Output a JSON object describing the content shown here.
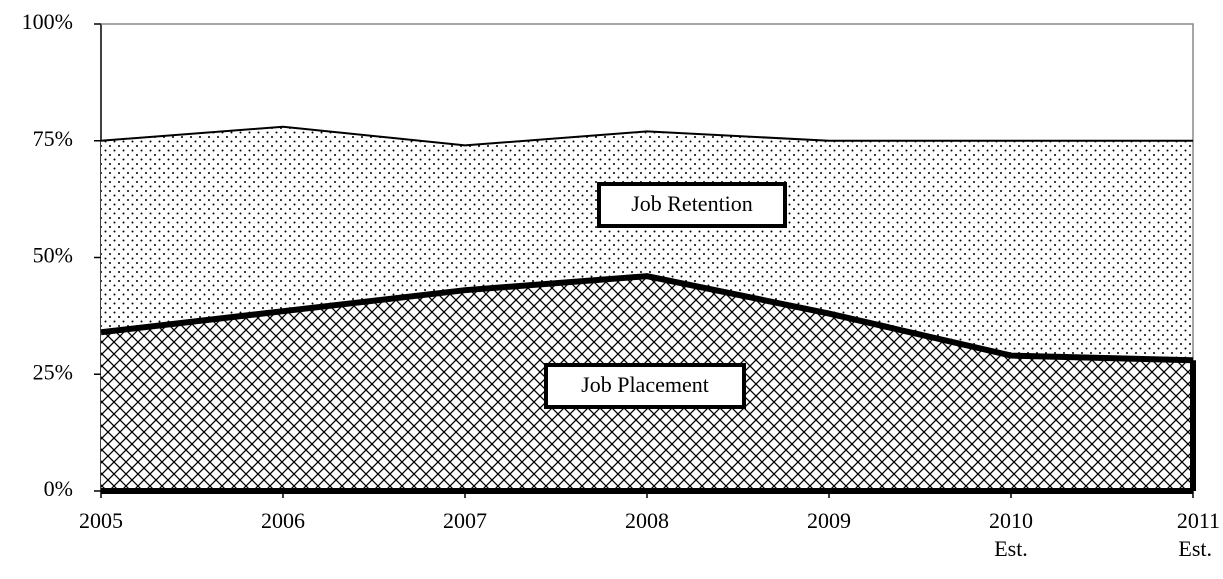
{
  "chart_data": {
    "type": "stacked_area",
    "categories": [
      "2005",
      "2006",
      "2007",
      "2008",
      "2009",
      "2010",
      "2011"
    ],
    "category_notes": [
      null,
      null,
      null,
      null,
      null,
      "Est.",
      "Est."
    ],
    "series": [
      {
        "name": "Job Placement",
        "color": "#000000",
        "values": [
          34,
          38.5,
          43,
          46,
          38,
          29,
          28
        ]
      },
      {
        "name": "Job Retention",
        "color": "#000000",
        "values": [
          41,
          39.5,
          31,
          31,
          37,
          46,
          47
        ]
      }
    ],
    "ylim": [
      0,
      100
    ],
    "yticks": [
      {
        "value": 0,
        "label": "0%"
      },
      {
        "value": 25,
        "label": "25%"
      },
      {
        "value": 50,
        "label": "50%"
      },
      {
        "value": 75,
        "label": "75%"
      },
      {
        "value": 100,
        "label": "100%"
      }
    ]
  }
}
